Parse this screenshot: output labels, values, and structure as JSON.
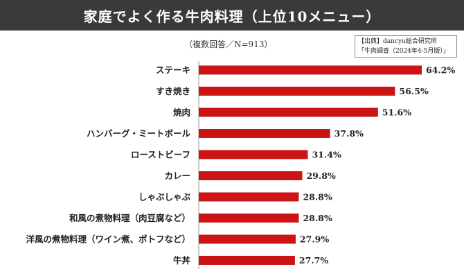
{
  "header": {
    "title": "家庭でよく作る牛肉料理（上位10メニュー）",
    "subtitle": "（複数回答／N=913）"
  },
  "source": {
    "line1": "【出典】dancyu総合研究所",
    "line2": "「牛肉調査（2024年4-5月版）」"
  },
  "colors": {
    "bar": "#cc1414",
    "header_bg": "#3a3a3a"
  },
  "chart_data": {
    "type": "bar",
    "orientation": "horizontal",
    "categories": [
      "ステーキ",
      "すき焼き",
      "焼肉",
      "ハンバーグ・ミートボール",
      "ローストビーフ",
      "カレー",
      "しゃぶしゃぶ",
      "和風の煮物料理（肉豆腐など）",
      "洋風の煮物料理（ワイン煮、ポトフなど）",
      "牛丼"
    ],
    "values": [
      64.2,
      56.5,
      51.6,
      37.8,
      31.4,
      29.8,
      28.8,
      28.8,
      27.9,
      27.7
    ],
    "value_labels": [
      "64.2%",
      "56.5%",
      "51.6%",
      "37.8%",
      "31.4%",
      "29.8%",
      "28.8%",
      "28.8%",
      "27.9%",
      "27.7%"
    ],
    "xlim": [
      0,
      64.2
    ],
    "grid": false,
    "legend": "none"
  }
}
